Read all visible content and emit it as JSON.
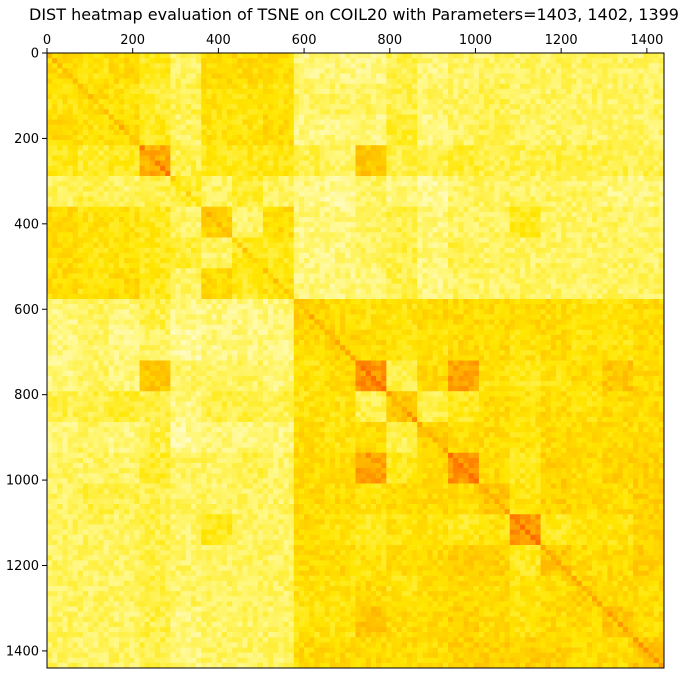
{
  "chart_data": {
    "type": "heatmap",
    "title": "DIST heatmap evaluation of TSNE on COIL20 with Parameters=1403, 1402, 1399",
    "xlabel": "",
    "ylabel": "",
    "xlim": [
      0,
      1440
    ],
    "ylim": [
      1440,
      0
    ],
    "x_ticks": [
      0,
      200,
      400,
      600,
      800,
      1000,
      1200,
      1400
    ],
    "y_ticks": [
      0,
      200,
      400,
      600,
      800,
      1000,
      1200,
      1400
    ],
    "x_tick_labels": [
      "0",
      "200",
      "400",
      "600",
      "800",
      "1000",
      "1200",
      "1400"
    ],
    "y_tick_labels": [
      "0",
      "200",
      "400",
      "600",
      "800",
      "1000",
      "1200",
      "1400"
    ],
    "x_axis_position": "top",
    "grid": false,
    "colormap": "autumn_r",
    "colormap_colors": [
      "#ffffff",
      "#fff77a",
      "#ffe600",
      "#ffb300",
      "#ff6a00"
    ],
    "block_size": 72,
    "n_blocks": 20,
    "block_boundaries": [
      0,
      72,
      144,
      216,
      288,
      360,
      432,
      504,
      576,
      648,
      720,
      792,
      864,
      936,
      1008,
      1080,
      1152,
      1224,
      1296,
      1368,
      1440
    ],
    "block_similarity_matrix": [
      [
        0.55,
        0.5,
        0.55,
        0.45,
        0.3,
        0.55,
        0.55,
        0.55,
        0.25,
        0.25,
        0.25,
        0.35,
        0.25,
        0.3,
        0.3,
        0.3,
        0.3,
        0.3,
        0.3,
        0.3
      ],
      [
        0.5,
        0.55,
        0.5,
        0.4,
        0.35,
        0.5,
        0.5,
        0.5,
        0.3,
        0.3,
        0.3,
        0.35,
        0.3,
        0.3,
        0.35,
        0.3,
        0.3,
        0.3,
        0.3,
        0.3
      ],
      [
        0.55,
        0.5,
        0.55,
        0.45,
        0.3,
        0.5,
        0.5,
        0.55,
        0.25,
        0.25,
        0.25,
        0.4,
        0.25,
        0.3,
        0.35,
        0.3,
        0.3,
        0.3,
        0.3,
        0.3
      ],
      [
        0.45,
        0.4,
        0.45,
        0.75,
        0.35,
        0.45,
        0.45,
        0.45,
        0.35,
        0.3,
        0.65,
        0.35,
        0.35,
        0.4,
        0.35,
        0.35,
        0.35,
        0.35,
        0.35,
        0.35
      ],
      [
        0.3,
        0.35,
        0.3,
        0.35,
        0.4,
        0.3,
        0.4,
        0.3,
        0.25,
        0.2,
        0.3,
        0.25,
        0.2,
        0.3,
        0.3,
        0.3,
        0.3,
        0.3,
        0.25,
        0.25
      ],
      [
        0.55,
        0.5,
        0.5,
        0.45,
        0.3,
        0.6,
        0.3,
        0.55,
        0.25,
        0.25,
        0.3,
        0.35,
        0.25,
        0.3,
        0.3,
        0.45,
        0.3,
        0.3,
        0.3,
        0.3
      ],
      [
        0.55,
        0.5,
        0.5,
        0.45,
        0.4,
        0.3,
        0.45,
        0.45,
        0.25,
        0.25,
        0.3,
        0.35,
        0.25,
        0.35,
        0.3,
        0.3,
        0.3,
        0.3,
        0.3,
        0.3
      ],
      [
        0.55,
        0.5,
        0.55,
        0.45,
        0.3,
        0.55,
        0.45,
        0.5,
        0.25,
        0.25,
        0.25,
        0.35,
        0.25,
        0.3,
        0.3,
        0.3,
        0.3,
        0.3,
        0.3,
        0.3
      ],
      [
        0.25,
        0.3,
        0.25,
        0.35,
        0.25,
        0.25,
        0.25,
        0.25,
        0.6,
        0.55,
        0.5,
        0.5,
        0.55,
        0.55,
        0.55,
        0.55,
        0.55,
        0.5,
        0.5,
        0.55
      ],
      [
        0.25,
        0.3,
        0.25,
        0.3,
        0.2,
        0.25,
        0.25,
        0.25,
        0.55,
        0.6,
        0.55,
        0.5,
        0.5,
        0.55,
        0.55,
        0.5,
        0.55,
        0.5,
        0.5,
        0.55
      ],
      [
        0.25,
        0.3,
        0.25,
        0.65,
        0.3,
        0.3,
        0.3,
        0.25,
        0.5,
        0.55,
        0.85,
        0.35,
        0.55,
        0.8,
        0.5,
        0.45,
        0.5,
        0.55,
        0.65,
        0.55
      ],
      [
        0.35,
        0.35,
        0.4,
        0.35,
        0.25,
        0.35,
        0.35,
        0.35,
        0.5,
        0.5,
        0.35,
        0.65,
        0.35,
        0.45,
        0.55,
        0.5,
        0.55,
        0.5,
        0.55,
        0.55
      ],
      [
        0.25,
        0.3,
        0.25,
        0.35,
        0.2,
        0.25,
        0.25,
        0.25,
        0.55,
        0.5,
        0.55,
        0.35,
        0.6,
        0.55,
        0.55,
        0.5,
        0.55,
        0.55,
        0.55,
        0.55
      ],
      [
        0.3,
        0.3,
        0.3,
        0.4,
        0.3,
        0.3,
        0.35,
        0.3,
        0.55,
        0.55,
        0.8,
        0.45,
        0.55,
        0.85,
        0.55,
        0.45,
        0.6,
        0.55,
        0.6,
        0.6
      ],
      [
        0.3,
        0.35,
        0.35,
        0.35,
        0.3,
        0.3,
        0.3,
        0.3,
        0.55,
        0.55,
        0.5,
        0.55,
        0.55,
        0.55,
        0.65,
        0.5,
        0.6,
        0.55,
        0.55,
        0.6
      ],
      [
        0.3,
        0.3,
        0.3,
        0.35,
        0.3,
        0.45,
        0.3,
        0.3,
        0.55,
        0.5,
        0.45,
        0.5,
        0.5,
        0.45,
        0.5,
        0.85,
        0.45,
        0.5,
        0.5,
        0.6
      ],
      [
        0.3,
        0.3,
        0.3,
        0.35,
        0.3,
        0.3,
        0.3,
        0.3,
        0.55,
        0.55,
        0.5,
        0.55,
        0.55,
        0.6,
        0.6,
        0.45,
        0.65,
        0.55,
        0.55,
        0.6
      ],
      [
        0.3,
        0.3,
        0.3,
        0.35,
        0.3,
        0.3,
        0.3,
        0.3,
        0.5,
        0.5,
        0.55,
        0.5,
        0.55,
        0.55,
        0.55,
        0.5,
        0.55,
        0.6,
        0.55,
        0.55
      ],
      [
        0.3,
        0.3,
        0.3,
        0.35,
        0.25,
        0.3,
        0.3,
        0.3,
        0.5,
        0.5,
        0.65,
        0.55,
        0.55,
        0.6,
        0.55,
        0.5,
        0.55,
        0.55,
        0.65,
        0.55
      ],
      [
        0.3,
        0.3,
        0.3,
        0.35,
        0.25,
        0.3,
        0.3,
        0.3,
        0.55,
        0.55,
        0.55,
        0.55,
        0.55,
        0.6,
        0.6,
        0.6,
        0.6,
        0.55,
        0.55,
        0.65
      ]
    ]
  }
}
